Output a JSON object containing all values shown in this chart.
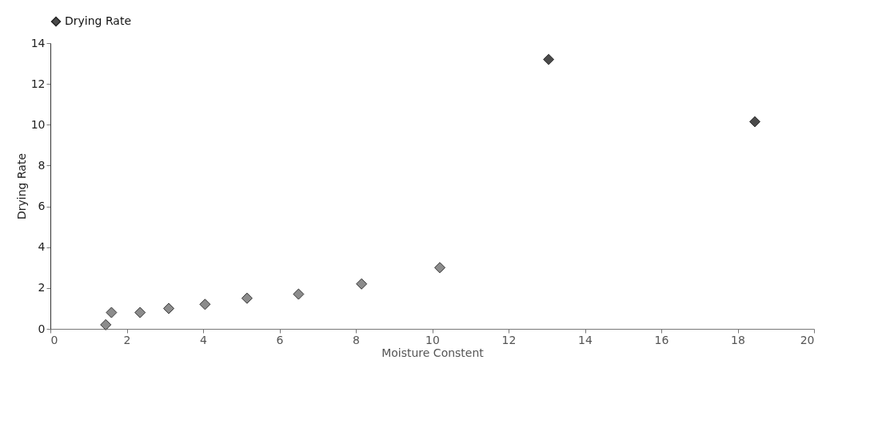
{
  "chart_data": {
    "type": "scatter",
    "xlabel": "Moisture Constent",
    "ylabel": "Drying Rate",
    "x": [
      1.45,
      1.6,
      2.35,
      3.1,
      4.05,
      5.15,
      6.5,
      8.15,
      10.2,
      13.05,
      18.45
    ],
    "series": [
      {
        "name": "Drying Rate",
        "color": "#4a4a4a",
        "values": [
          0.2,
          0.8,
          0.8,
          1.0,
          1.2,
          1.5,
          1.7,
          2.2,
          3.0,
          13.2,
          10.15
        ],
        "colors": [
          "#8c8c8c",
          "#8c8c8c",
          "#8c8c8c",
          "#8c8c8c",
          "#8c8c8c",
          "#8c8c8c",
          "#8c8c8c",
          "#8c8c8c",
          "#8c8c8c",
          "#4a4a4a",
          "#4a4a4a"
        ]
      }
    ],
    "xlim": [
      0,
      20
    ],
    "xticks": [
      0,
      2,
      4,
      6,
      8,
      10,
      12,
      14,
      16,
      18,
      20
    ],
    "ylim": [
      0,
      14
    ],
    "yticks": [
      0,
      2,
      4,
      6,
      8,
      10,
      12,
      14
    ],
    "marker": "diamond",
    "legend": "top",
    "grid": false
  }
}
